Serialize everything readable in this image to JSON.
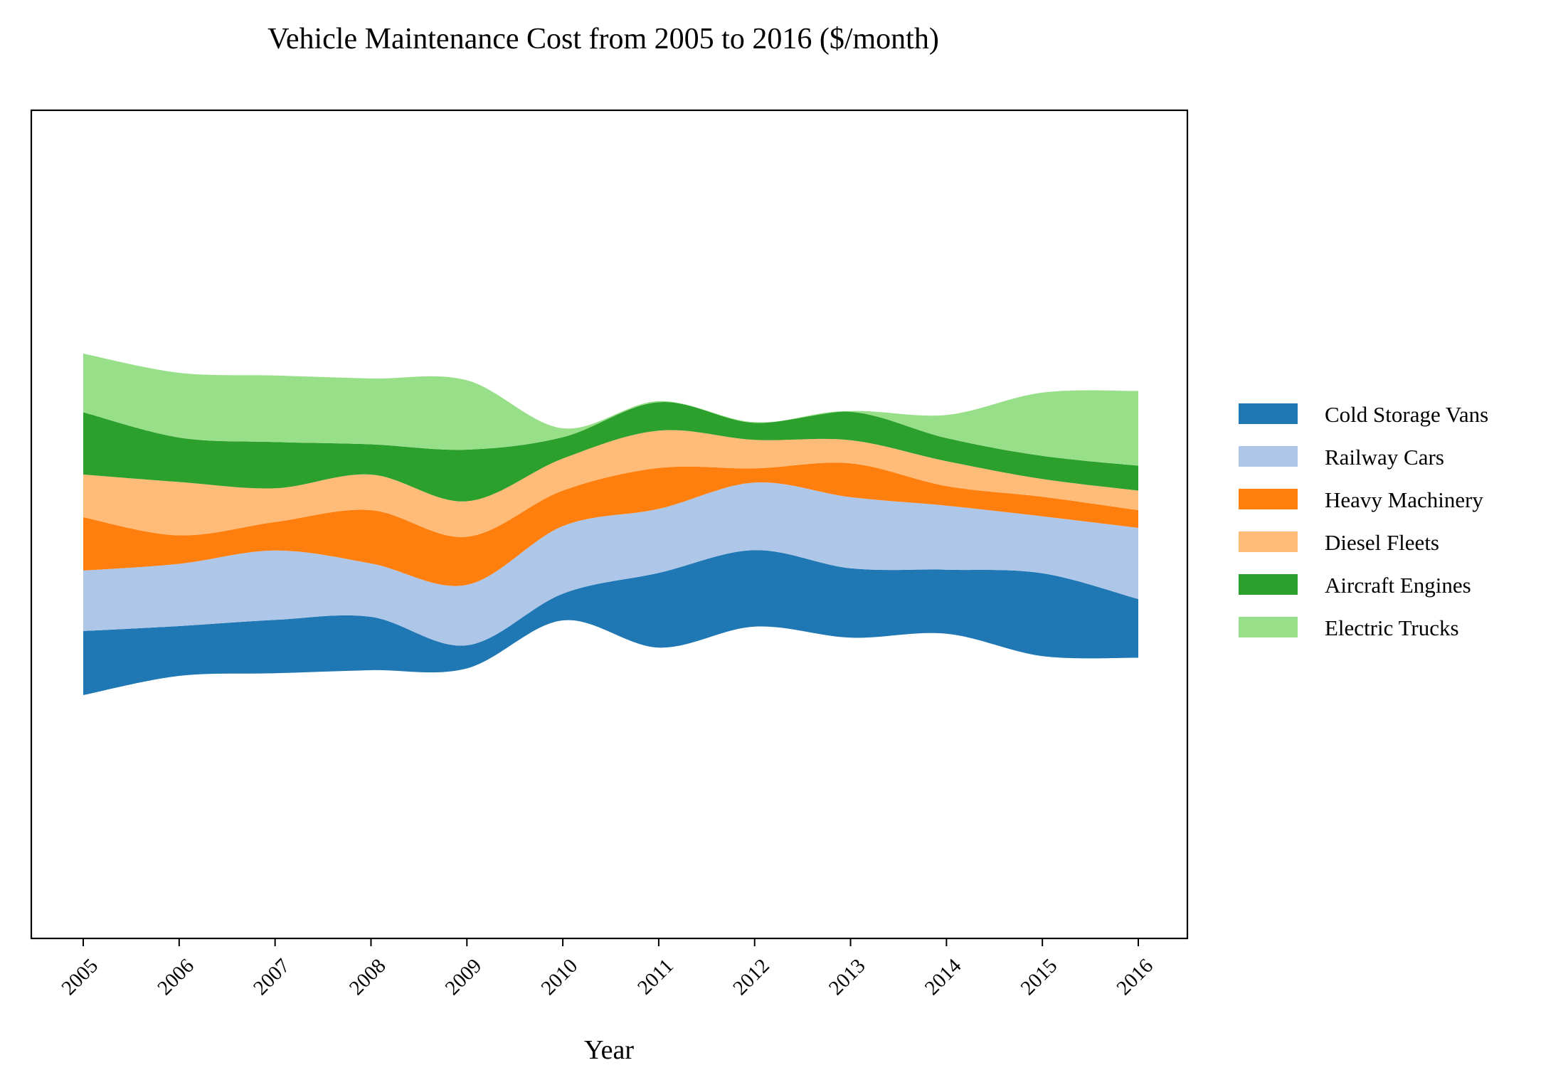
{
  "chart_data": {
    "type": "streamgraph",
    "title": "Vehicle Maintenance Cost from 2005 to 2016 ($/month)",
    "xlabel": "Year",
    "ylabel": "",
    "x": [
      2005,
      2006,
      2007,
      2008,
      2009,
      2010,
      2011,
      2012,
      2013,
      2014,
      2015,
      2016
    ],
    "x_tick_labels": [
      "2005",
      "2006",
      "2007",
      "2008",
      "2009",
      "2010",
      "2011",
      "2012",
      "2013",
      "2014",
      "2015",
      "2016"
    ],
    "baseline": "symmetric",
    "legend_position": "right",
    "grid": false,
    "series": [
      {
        "name": "Cold Storage Vans",
        "color": "#1f77b4",
        "values": [
          180,
          140,
          150,
          150,
          65,
          75,
          210,
          215,
          195,
          180,
          233,
          165
        ]
      },
      {
        "name": "Railway Cars",
        "color": "#aec7e8",
        "values": [
          170,
          175,
          195,
          150,
          170,
          190,
          180,
          190,
          200,
          180,
          160,
          200
        ]
      },
      {
        "name": "Heavy Machinery",
        "color": "#ff7f0e",
        "values": [
          150,
          80,
          80,
          150,
          135,
          100,
          115,
          40,
          95,
          55,
          55,
          50
        ]
      },
      {
        "name": "Diesel Fleets",
        "color": "#ffbb78",
        "values": [
          120,
          150,
          95,
          100,
          100,
          90,
          105,
          80,
          65,
          70,
          50,
          55
        ]
      },
      {
        "name": "Aircraft Engines",
        "color": "#2ca02c",
        "values": [
          175,
          125,
          130,
          85,
          145,
          60,
          80,
          48,
          80,
          65,
          65,
          70
        ]
      },
      {
        "name": "Electric Trucks",
        "color": "#98df8a",
        "values": [
          165,
          182,
          187,
          185,
          195,
          25,
          3,
          2,
          2,
          65,
          178,
          210
        ]
      }
    ]
  }
}
